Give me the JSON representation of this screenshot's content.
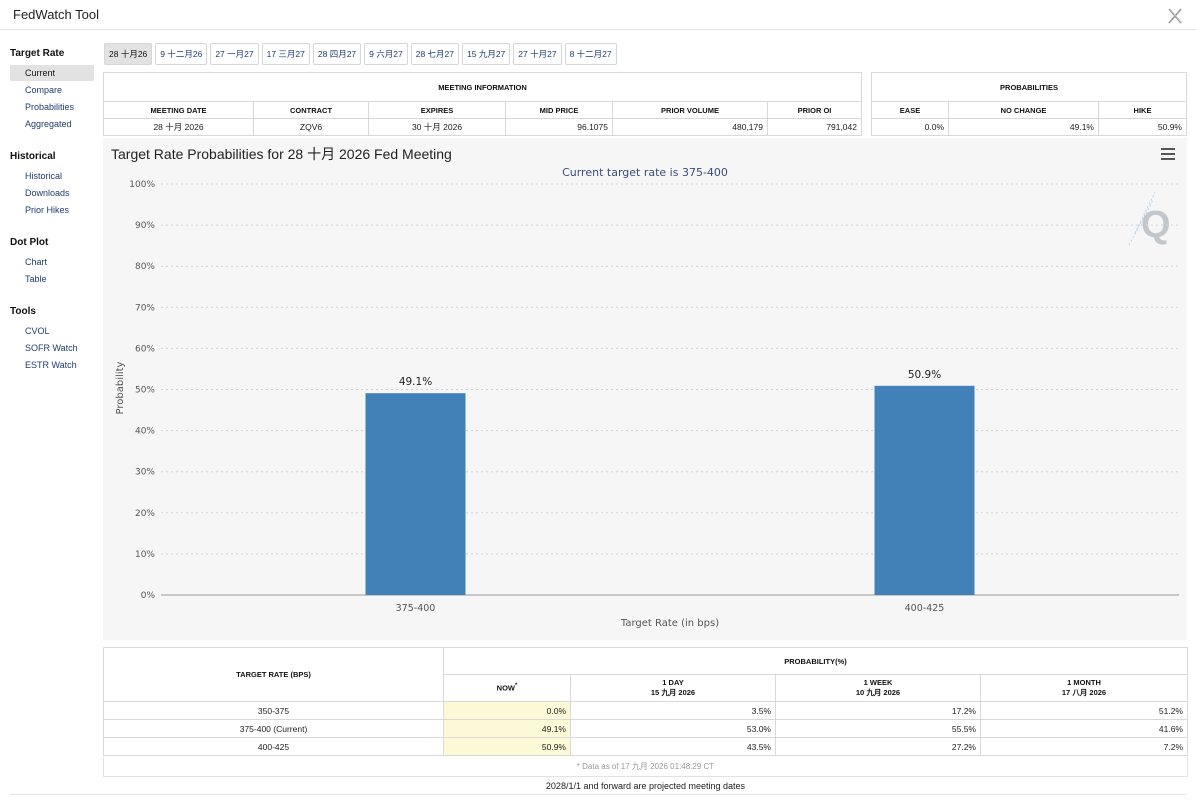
{
  "app": {
    "title": "FedWatch Tool"
  },
  "sidebar": {
    "sections": [
      {
        "title": "Target Rate",
        "items": [
          {
            "label": "Current",
            "active": true
          },
          {
            "label": "Compare"
          },
          {
            "label": "Probabilities"
          },
          {
            "label": "Aggregated"
          }
        ]
      },
      {
        "title": "Historical",
        "items": [
          {
            "label": "Historical"
          },
          {
            "label": "Downloads"
          },
          {
            "label": "Prior Hikes"
          }
        ]
      },
      {
        "title": "Dot Plot",
        "items": [
          {
            "label": "Chart"
          },
          {
            "label": "Table"
          }
        ]
      },
      {
        "title": "Tools",
        "items": [
          {
            "label": "CVOL"
          },
          {
            "label": "SOFR Watch"
          },
          {
            "label": "ESTR Watch"
          }
        ]
      }
    ]
  },
  "tabs": [
    "28 十月26",
    "9 十二月26",
    "27 一月27",
    "17 三月27",
    "28 四月27",
    "9 六月27",
    "28 七月27",
    "15 九月27",
    "27 十月27",
    "8 十二月27"
  ],
  "meeting_info": {
    "title": "MEETING INFORMATION",
    "headers": [
      "MEETING DATE",
      "CONTRACT",
      "EXPIRES",
      "MID PRICE",
      "PRIOR VOLUME",
      "PRIOR OI"
    ],
    "row": [
      "28 十月 2026",
      "ZQV6",
      "30 十月 2026",
      "96.1075",
      "480,179",
      "791,042"
    ]
  },
  "probabilities": {
    "title": "PROBABILITIES",
    "headers": [
      "EASE",
      "NO CHANGE",
      "HIKE"
    ],
    "row": [
      "0.0%",
      "49.1%",
      "50.9%"
    ]
  },
  "chart_title": "Target Rate Probabilities for 28 十月 2026 Fed Meeting",
  "chart_data": {
    "type": "bar",
    "subtitle": "Current target rate is 375-400",
    "categories": [
      "375-400",
      "400-425"
    ],
    "values": [
      49.1,
      50.9
    ],
    "value_labels": [
      "49.1%",
      "50.9%"
    ],
    "xlabel": "Target Rate (in bps)",
    "ylabel": "Probability",
    "ylim": [
      0,
      100
    ],
    "yticks": [
      "0%",
      "10%",
      "20%",
      "30%",
      "40%",
      "50%",
      "60%",
      "70%",
      "80%",
      "90%",
      "100%"
    ],
    "grid": true,
    "bar_color": "#4280b8",
    "watermark": "Q"
  },
  "prob_table": {
    "col_target": "TARGET RATE (BPS)",
    "col_prob": "PROBABILITY(%)",
    "sub_headers": [
      {
        "label": "NOW",
        "mark": "*"
      },
      {
        "label": "1 DAY",
        "date": "15 九月 2026"
      },
      {
        "label": "1 WEEK",
        "date": "10 九月 2026"
      },
      {
        "label": "1 MONTH",
        "date": "17 八月 2026"
      }
    ],
    "rows": [
      [
        "350-375",
        "0.0%",
        "3.5%",
        "17.2%",
        "51.2%"
      ],
      [
        "375-400 (Current)",
        "49.1%",
        "53.0%",
        "55.5%",
        "41.6%"
      ],
      [
        "400-425",
        "50.9%",
        "43.5%",
        "27.2%",
        "7.2%"
      ]
    ]
  },
  "data_note": "* Data as of 17 九月 2026 01:48:29 CT",
  "projected_note": "2028/1/1 and forward are projected meeting dates"
}
